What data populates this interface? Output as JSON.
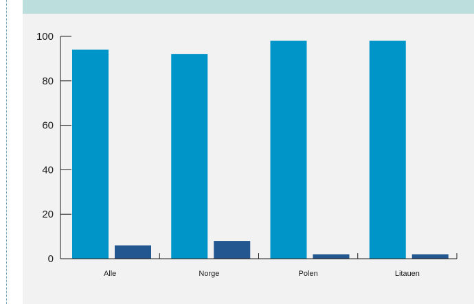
{
  "header": {
    "title": ""
  },
  "colors": {
    "series1": "#0095c8",
    "series2": "#23578f",
    "axis": "#1a1a1a"
  },
  "chart_data": {
    "type": "bar",
    "title": "",
    "xlabel": "",
    "ylabel": "",
    "categories": [
      "Alle",
      "Norge",
      "Polen",
      "Litauen"
    ],
    "series": [
      {
        "values": [
          94,
          92,
          98,
          98
        ]
      },
      {
        "values": [
          6,
          8,
          2,
          2
        ]
      }
    ],
    "ylim": [
      0,
      100
    ],
    "yticks": [
      "0",
      "20",
      "40",
      "60",
      "80",
      "100"
    ],
    "grid": false,
    "legend": "none"
  }
}
